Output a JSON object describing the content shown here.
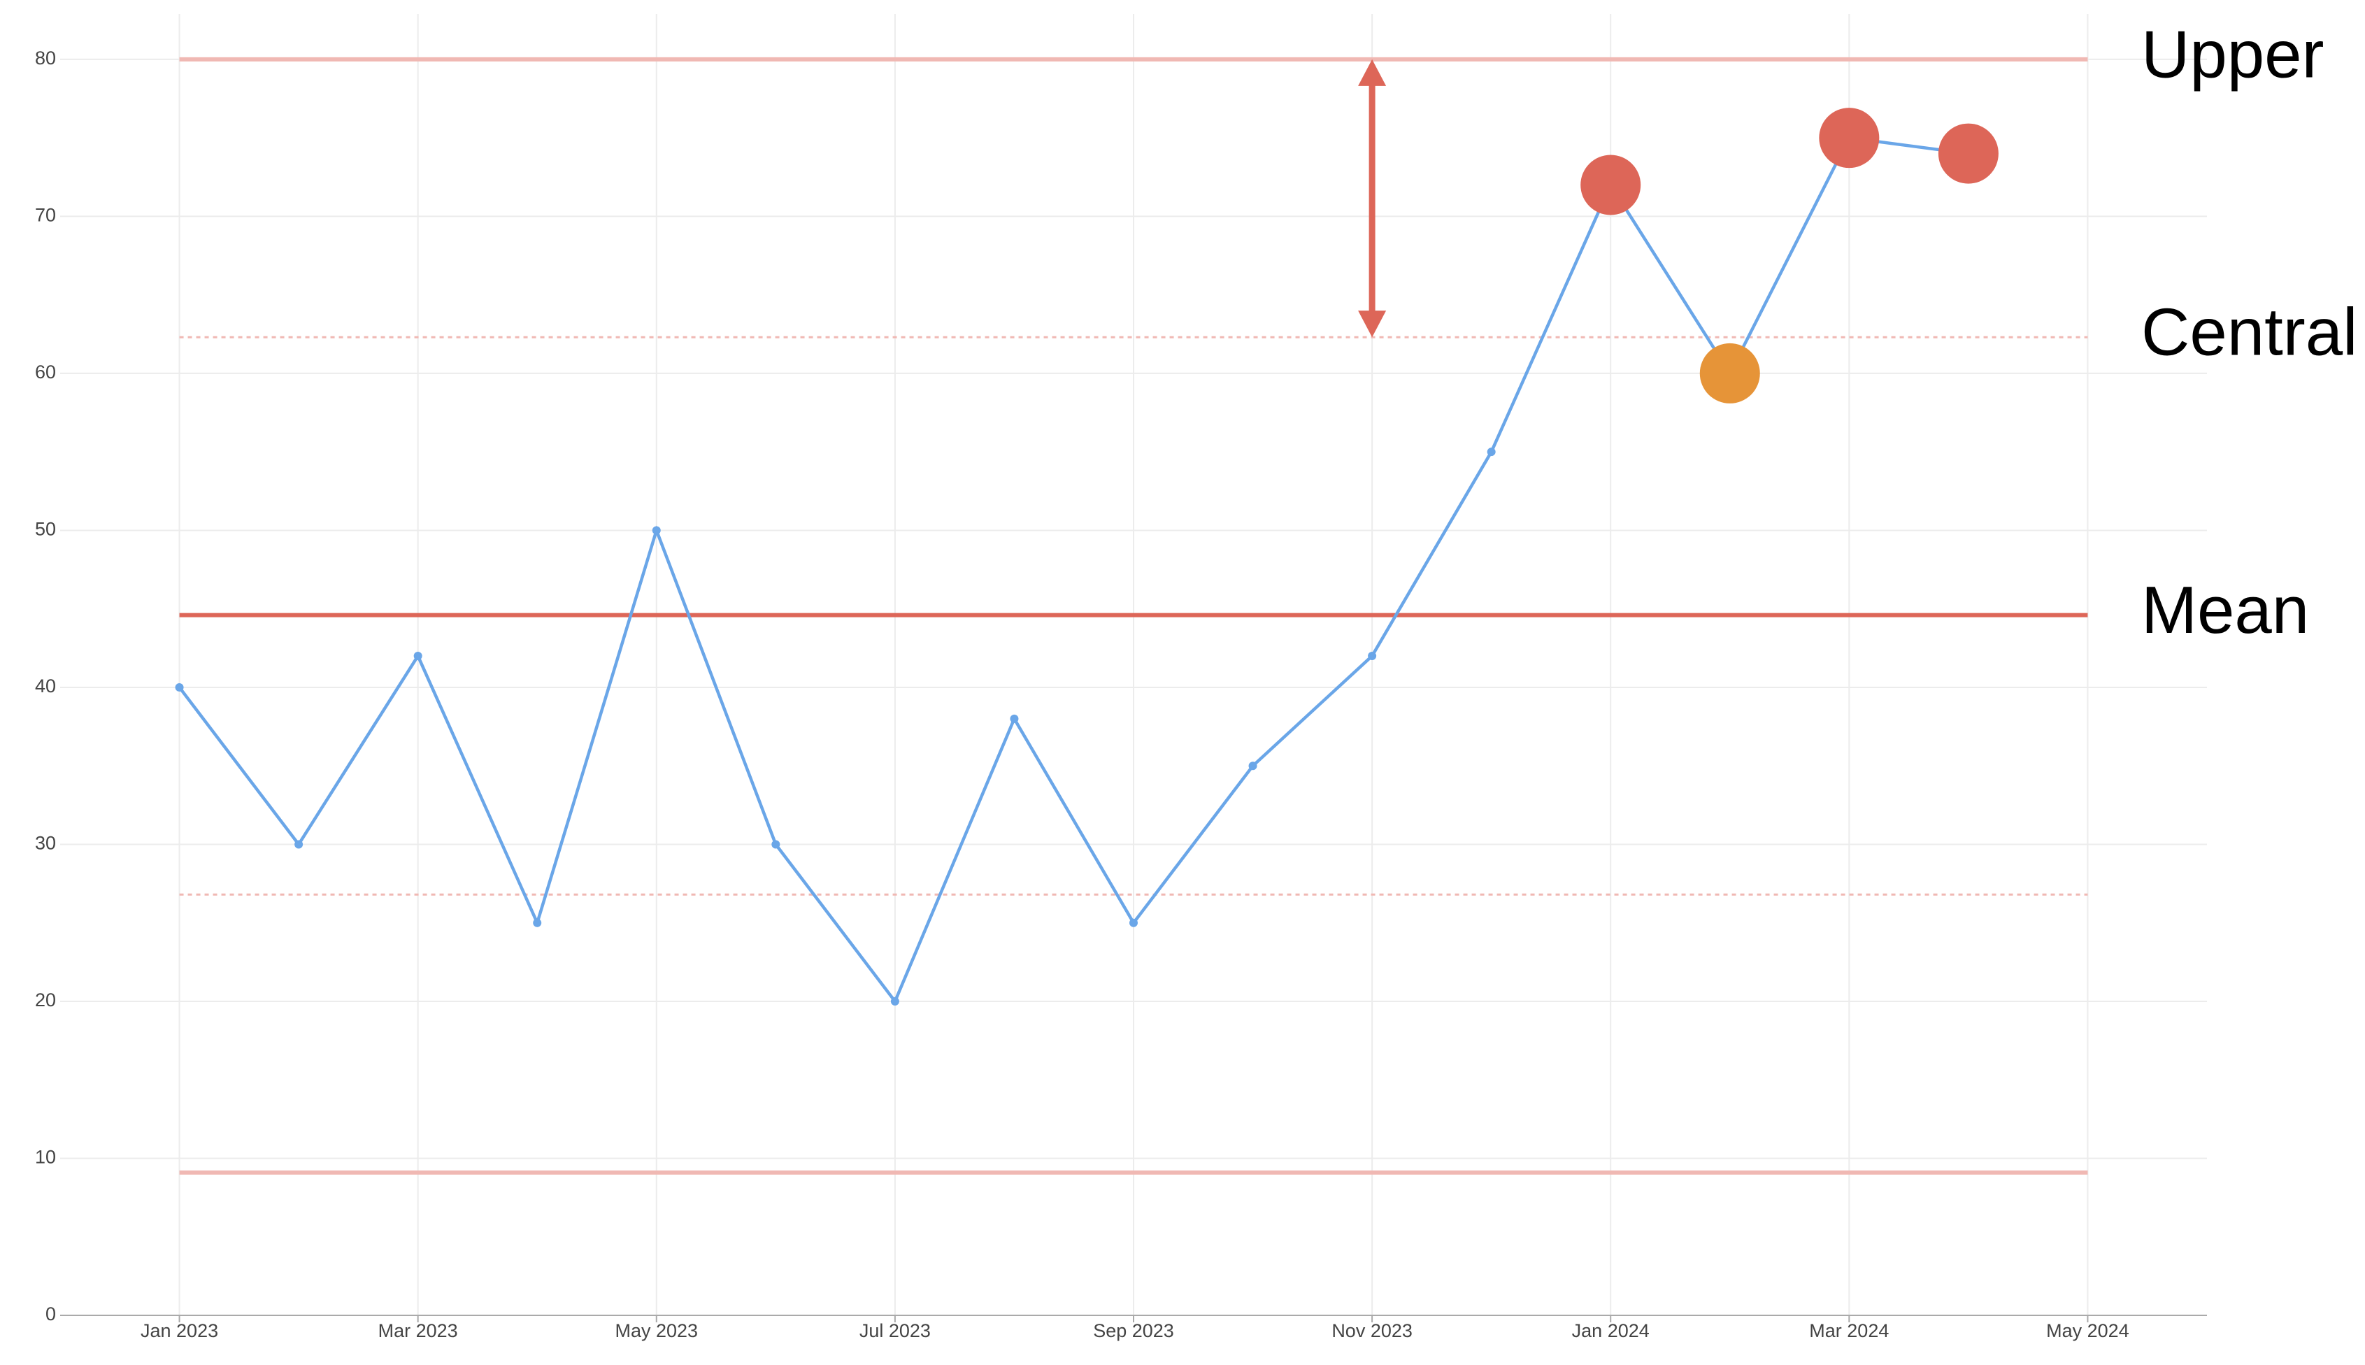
{
  "chart_data": {
    "type": "line",
    "x": [
      "2023-01",
      "2023-02",
      "2023-03",
      "2023-04",
      "2023-05",
      "2023-06",
      "2023-07",
      "2023-08",
      "2023-09",
      "2023-10",
      "2023-11",
      "2023-12",
      "2024-01",
      "2024-02",
      "2024-03",
      "2024-04"
    ],
    "series": [
      {
        "color": "#6aa6e8",
        "values": [
          40,
          30,
          42,
          25,
          50,
          30,
          20,
          38,
          25,
          35,
          42,
          55,
          72,
          60,
          75,
          74
        ],
        "highlight_colors": [
          null,
          null,
          null,
          null,
          null,
          null,
          null,
          null,
          null,
          null,
          null,
          null,
          "#dd6658",
          "#e69438",
          "#dd6658",
          "#dd6658"
        ]
      }
    ],
    "xlim": [
      "2022-12",
      "2024-06"
    ],
    "xticks": [
      {
        "value": "2023-01",
        "label": "Jan 2023"
      },
      {
        "value": "2023-03",
        "label": "Mar 2023"
      },
      {
        "value": "2023-05",
        "label": "May 2023"
      },
      {
        "value": "2023-07",
        "label": "Jul 2023"
      },
      {
        "value": "2023-09",
        "label": "Sep 2023"
      },
      {
        "value": "2023-11",
        "label": "Nov 2023"
      },
      {
        "value": "2024-01",
        "label": "Jan 2024"
      },
      {
        "value": "2024-03",
        "label": "Mar 2024"
      },
      {
        "value": "2024-05",
        "label": "May 2024"
      }
    ],
    "ylim": [
      0,
      82
    ],
    "yticks": [
      0,
      10,
      20,
      30,
      40,
      50,
      60,
      70,
      80
    ],
    "grid": true,
    "reference_lines": [
      {
        "label": "Upper",
        "value": 80,
        "color": "#f0b8b3",
        "style": "solid"
      },
      {
        "label": "Central",
        "value": 62.3,
        "color": "#f0b8b3",
        "style": "dotted"
      },
      {
        "label": "Mean",
        "value": 44.6,
        "color": "#dd6658",
        "style": "solid"
      },
      {
        "value": 26.8,
        "color": "#f0b8b3",
        "style": "dotted"
      },
      {
        "value": 9.1,
        "color": "#f0b8b3",
        "style": "solid"
      }
    ],
    "annotations": [
      {
        "type": "arrow",
        "x": "2023-11",
        "from": 62.3,
        "to": 80,
        "color": "#dd6658"
      }
    ]
  }
}
